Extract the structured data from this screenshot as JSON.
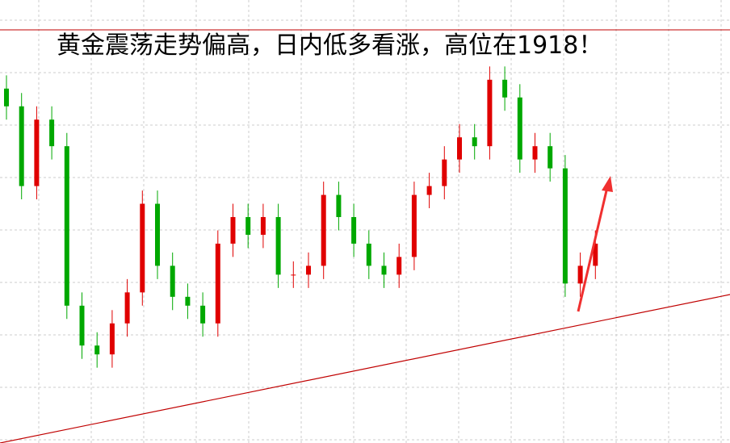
{
  "chart_data": {
    "type": "candlestick",
    "title": "黄金震荡走势偏高，日内低多看涨，高位在1918！",
    "up_color": "#e00000",
    "down_color": "#00a800",
    "ylim": [
      0,
      100
    ],
    "open": [
      80,
      76,
      58,
      73,
      67,
      31,
      22,
      20,
      27,
      34,
      54,
      40,
      33,
      31,
      27,
      45,
      51,
      47,
      51,
      38,
      38,
      40,
      56,
      51,
      45,
      40,
      38,
      42,
      56,
      58,
      64,
      69,
      67,
      82,
      78,
      64,
      67,
      62,
      36,
      40
    ],
    "close": [
      76,
      58,
      73,
      67,
      31,
      22,
      20,
      27,
      34,
      54,
      40,
      33,
      31,
      27,
      45,
      51,
      47,
      51,
      38,
      38,
      40,
      56,
      51,
      45,
      40,
      38,
      42,
      56,
      58,
      64,
      69,
      67,
      82,
      78,
      64,
      67,
      62,
      36,
      40,
      45
    ],
    "high": [
      83,
      79,
      76,
      76,
      70,
      34,
      25,
      30,
      37,
      57,
      57,
      43,
      36,
      34,
      48,
      54,
      54,
      54,
      54,
      41,
      43,
      59,
      59,
      54,
      48,
      43,
      45,
      59,
      61,
      67,
      72,
      72,
      85,
      85,
      81,
      70,
      70,
      65,
      43,
      48
    ],
    "low": [
      73,
      55,
      55,
      64,
      28,
      19,
      17,
      17,
      24,
      31,
      37,
      30,
      28,
      24,
      24,
      42,
      44,
      44,
      35,
      35,
      35,
      37,
      48,
      42,
      37,
      35,
      35,
      39,
      53,
      55,
      61,
      64,
      64,
      75,
      61,
      61,
      59,
      33,
      33,
      37
    ]
  }
}
